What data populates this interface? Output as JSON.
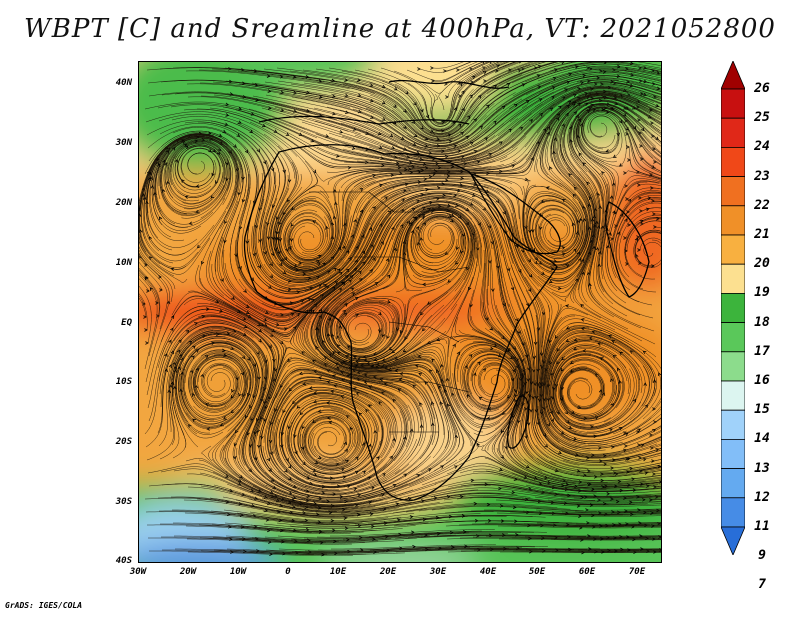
{
  "title": "WBPT [C] and Sreamline at 400hPa, VT: 2021052800",
  "footer": "GrADS: IGES/COLA",
  "map": {
    "lat_labels": [
      "40N",
      "30N",
      "20N",
      "10N",
      "EQ",
      "10S",
      "20S",
      "30S",
      "40S"
    ],
    "lon_labels": [
      "30W",
      "20W",
      "10W",
      "0",
      "10E",
      "20E",
      "30E",
      "40E",
      "50E",
      "60E",
      "70E"
    ],
    "lat_range": [
      -40,
      45
    ],
    "lon_range": [
      -30,
      75
    ]
  },
  "colorbar": {
    "labels": [
      "26",
      "25",
      "24",
      "23",
      "22",
      "21",
      "20",
      "19",
      "18",
      "17",
      "16",
      "15",
      "14",
      "13",
      "12",
      "11",
      "9",
      "7"
    ],
    "colors": [
      "#a00000",
      "#c81010",
      "#e02818",
      "#f04818",
      "#f07020",
      "#f09028",
      "#f8b040",
      "#fce090",
      "#3cb43c",
      "#5ac85a",
      "#8cdc8c",
      "#dcf5f0",
      "#a0d2fa",
      "#82bef8",
      "#64aaf0",
      "#468ce6",
      "#286ed8"
    ]
  }
}
